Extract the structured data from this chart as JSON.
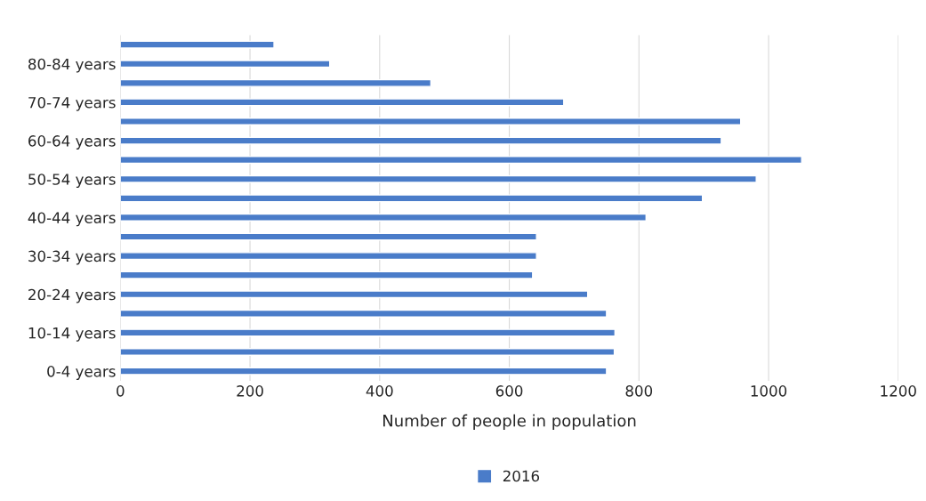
{
  "chart_data": {
    "type": "bar",
    "orientation": "horizontal",
    "xlabel": "Number of people in population",
    "categories": [
      null,
      "80-84 years",
      null,
      "70-74 years",
      null,
      "60-64 years",
      null,
      "50-54 years",
      null,
      "40-44 years",
      null,
      "30-34 years",
      null,
      "20-24 years",
      null,
      "10-14 years",
      null,
      "0-4 years"
    ],
    "series": [
      {
        "name": "2016",
        "color": "#4a7cc9",
        "values": [
          237,
          323,
          479,
          684,
          957,
          927,
          1051,
          981,
          898,
          811,
          642,
          642,
          636,
          721,
          750,
          763,
          762,
          750
        ]
      }
    ],
    "xlim": [
      0,
      1200
    ],
    "xticks": [
      0,
      200,
      400,
      600,
      800,
      1000,
      1200
    ],
    "grid": "x",
    "legend": "bottom"
  }
}
